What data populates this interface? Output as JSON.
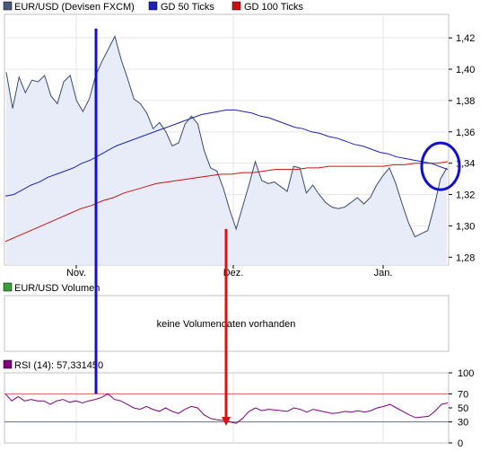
{
  "chart_data": [
    {
      "type": "line",
      "legend": [
        {
          "name": "EUR/USD (Devisen FXCM)",
          "color": "#4a5a7a"
        },
        {
          "name": "GD 50 Ticks",
          "color": "#1f1fc0"
        },
        {
          "name": "GD 100 Ticks",
          "color": "#d01010"
        }
      ],
      "x_ticks": [
        "Nov.",
        "Dez.",
        "Jan."
      ],
      "y_ticks": [
        "1,42",
        "1,40",
        "1,38",
        "1,36",
        "1,34",
        "1,32",
        "1,30",
        "1,28"
      ],
      "ylim": [
        1.275,
        1.435
      ],
      "grid": true,
      "series": [
        {
          "name": "EUR/USD (Devisen FXCM)",
          "area": true,
          "values": [
            1.398,
            1.375,
            1.395,
            1.385,
            1.393,
            1.392,
            1.396,
            1.383,
            1.378,
            1.392,
            1.396,
            1.38,
            1.373,
            1.381,
            1.396,
            1.405,
            1.413,
            1.421,
            1.406,
            1.394,
            1.381,
            1.378,
            1.372,
            1.362,
            1.366,
            1.36,
            1.351,
            1.353,
            1.365,
            1.37,
            1.365,
            1.348,
            1.337,
            1.335,
            1.324,
            1.31,
            1.298,
            1.312,
            1.326,
            1.341,
            1.329,
            1.327,
            1.328,
            1.325,
            1.322,
            1.338,
            1.337,
            1.321,
            1.326,
            1.32,
            1.315,
            1.312,
            1.311,
            1.312,
            1.315,
            1.318,
            1.314,
            1.318,
            1.326,
            1.332,
            1.337,
            1.327,
            1.314,
            1.302,
            1.293,
            1.295,
            1.297,
            1.312,
            1.33,
            1.337
          ]
        },
        {
          "name": "GD 50 Ticks",
          "values": [
            1.319,
            1.32,
            1.323,
            1.326,
            1.328,
            1.331,
            1.333,
            1.335,
            1.337,
            1.34,
            1.342,
            1.345,
            1.348,
            1.351,
            1.353,
            1.355,
            1.357,
            1.359,
            1.361,
            1.363,
            1.365,
            1.367,
            1.369,
            1.371,
            1.372,
            1.373,
            1.374,
            1.374,
            1.373,
            1.372,
            1.37,
            1.369,
            1.367,
            1.365,
            1.363,
            1.362,
            1.36,
            1.359,
            1.357,
            1.356,
            1.354,
            1.352,
            1.351,
            1.349,
            1.347,
            1.346,
            1.344,
            1.343,
            1.342,
            1.341,
            1.34,
            1.338,
            1.336
          ]
        },
        {
          "name": "GD 100 Ticks",
          "values": [
            1.29,
            1.293,
            1.296,
            1.299,
            1.302,
            1.305,
            1.308,
            1.311,
            1.313,
            1.316,
            1.318,
            1.321,
            1.323,
            1.325,
            1.327,
            1.328,
            1.329,
            1.33,
            1.331,
            1.332,
            1.333,
            1.333,
            1.334,
            1.334,
            1.335,
            1.336,
            1.336,
            1.336,
            1.337,
            1.337,
            1.338,
            1.338,
            1.338,
            1.338,
            1.338,
            1.338,
            1.339,
            1.339,
            1.34,
            1.34,
            1.34,
            1.341
          ]
        }
      ],
      "annotations": [
        {
          "type": "vertical-line",
          "color": "#1010d0",
          "from_value": 1.426,
          "to_rsi": 70
        },
        {
          "type": "vertical-line",
          "color": "#e01010",
          "from_value": 1.298,
          "to_rsi": 27
        },
        {
          "type": "ellipse",
          "color": "#1010d0",
          "around_value": 1.338
        }
      ]
    },
    {
      "type": "bar",
      "legend": [
        {
          "name": "EUR/USD Volumen",
          "color": "#3aa03a"
        }
      ],
      "message": "keine Volumendaten vorhanden"
    },
    {
      "type": "line",
      "legend": [
        {
          "name": "RSI (14): 57,331450",
          "color": "#800080"
        }
      ],
      "y_ticks": [
        "100",
        "70",
        "50",
        "30",
        "0"
      ],
      "ylim": [
        0,
        100
      ],
      "levels": [
        {
          "value": 70,
          "color": "#e06060"
        },
        {
          "value": 30,
          "color": "#6060e0"
        }
      ],
      "series": [
        {
          "name": "RSI (14)",
          "values": [
            70,
            60,
            66,
            60,
            62,
            60,
            60,
            55,
            60,
            62,
            58,
            60,
            57,
            60,
            62,
            65,
            70,
            62,
            60,
            55,
            50,
            48,
            52,
            48,
            45,
            50,
            45,
            42,
            48,
            52,
            50,
            40,
            35,
            33,
            32,
            30,
            28,
            35,
            45,
            50,
            46,
            48,
            47,
            46,
            45,
            50,
            48,
            44,
            48,
            46,
            44,
            42,
            43,
            45,
            44,
            46,
            44,
            46,
            50,
            52,
            55,
            50,
            45,
            40,
            36,
            37,
            38,
            45,
            55,
            57
          ]
        }
      ]
    }
  ]
}
